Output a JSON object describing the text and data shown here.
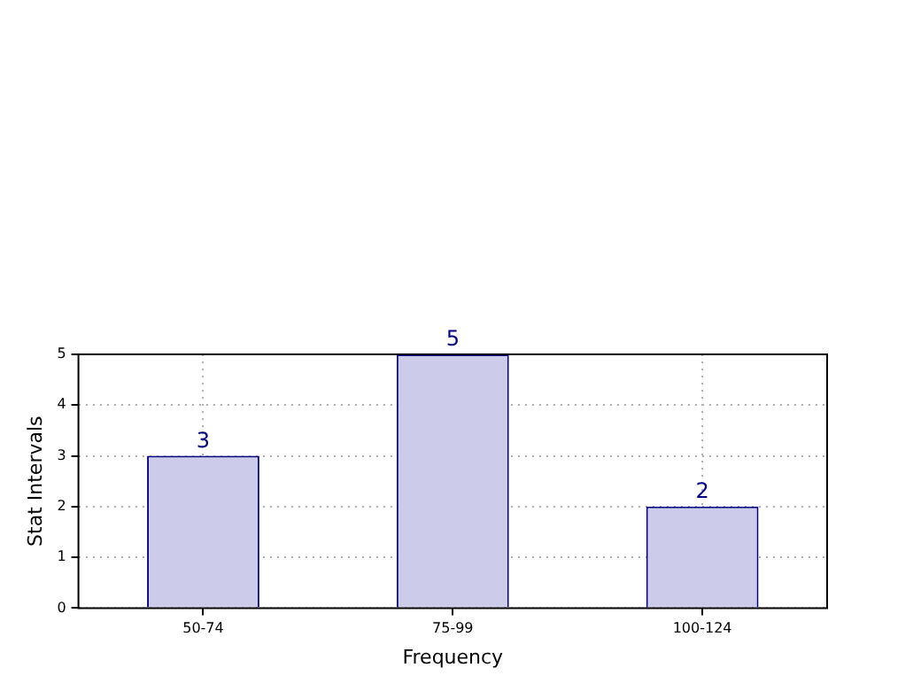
{
  "chart_data": {
    "type": "bar",
    "categories": [
      "50-74",
      "75-99",
      "100-124"
    ],
    "values": [
      3,
      5,
      2
    ],
    "color": "#ccccea",
    "xlabel": "Frequency",
    "ylabel": "Stat Intervals",
    "ylim": [
      0,
      5
    ],
    "yticks": [
      0,
      1,
      2,
      3,
      4,
      5
    ],
    "grid": true,
    "data_labels": true,
    "legend": false
  }
}
